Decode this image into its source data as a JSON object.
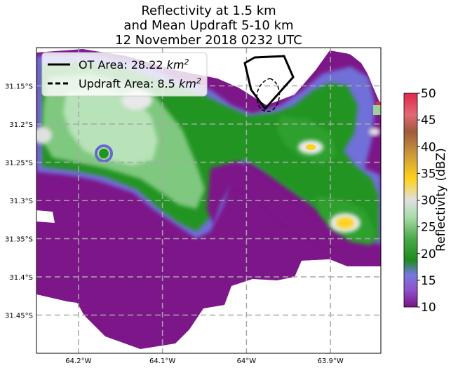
{
  "title": {
    "line1": "Reflectivity at 1.5 km",
    "line2": "and Mean Updraft 5-10 km",
    "line3": "12 November 2018 0232 UTC"
  },
  "legend": {
    "ot_label": "OT Area: 28.22 ",
    "updraft_label": "Updraft Area: 8.5 ",
    "unit": "km",
    "unit_exp": "2"
  },
  "colorbar": {
    "label": "Reflectivity (dBZ)",
    "ticks": [
      "10",
      "15",
      "20",
      "25",
      "30",
      "35",
      "40",
      "45",
      "50"
    ],
    "colors": [
      "#7a1487",
      "#8e52cc",
      "#7878e0",
      "#1c8c1c",
      "#2fa02f",
      "#90d090",
      "#e0e0e0",
      "#ffd21a",
      "#c8963c",
      "#a05a3c",
      "#e06a74",
      "#e0284a"
    ]
  },
  "chart_data": {
    "type": "heatmap",
    "title": "Reflectivity at 1.5 km and Mean Updraft 5-10 km 12 November 2018 0232 UTC",
    "xlabel": "",
    "ylabel": "",
    "x_ticks": [
      "64.2°W",
      "64.1°W",
      "64°W",
      "63.9°W"
    ],
    "y_ticks": [
      "31.15°S",
      "31.2°S",
      "31.25°S",
      "31.3°S",
      "31.35°S",
      "31.4°S",
      "31.45°S"
    ],
    "lon_range": [
      -64.25,
      -63.84
    ],
    "lat_range": [
      -31.5,
      -31.1
    ],
    "grid": true,
    "value_range": [
      10,
      50
    ],
    "units": "dBZ",
    "series": [
      {
        "name": "OT Area: 28.22 km2",
        "style": "solid"
      },
      {
        "name": "Updraft Area: 8.5 km2",
        "style": "dashed"
      }
    ]
  }
}
